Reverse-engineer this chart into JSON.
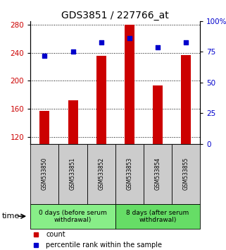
{
  "title": "GDS3851 / 227766_at",
  "samples": [
    "GSM533850",
    "GSM533851",
    "GSM533852",
    "GSM533853",
    "GSM533854",
    "GSM533855"
  ],
  "counts": [
    157,
    172,
    236,
    280,
    193,
    237
  ],
  "percentiles": [
    72,
    75,
    83,
    86,
    79,
    83
  ],
  "ylim_left": [
    110,
    285
  ],
  "ylim_right": [
    0,
    100
  ],
  "yticks_left": [
    120,
    160,
    200,
    240,
    280
  ],
  "yticks_right": [
    0,
    25,
    50,
    75,
    100
  ],
  "ytick_labels_right": [
    "0",
    "25",
    "50",
    "75",
    "100%"
  ],
  "bar_color": "#cc0000",
  "dot_color": "#0000cc",
  "bar_bottom": 110,
  "groups": [
    {
      "label": "0 days (before serum\nwithdrawal)",
      "samples_idx": [
        0,
        1,
        2
      ],
      "color": "#88ee88"
    },
    {
      "label": "8 days (after serum\nwithdrawal)",
      "samples_idx": [
        3,
        4,
        5
      ],
      "color": "#66dd66"
    }
  ],
  "sample_box_color": "#cccccc",
  "time_label": "time",
  "legend_count_label": "count",
  "legend_pct_label": "percentile rank within the sample",
  "title_fontsize": 10,
  "tick_fontsize": 7.5,
  "sample_fontsize": 5.5,
  "group_fontsize": 6.5,
  "legend_fontsize": 7,
  "bg_color": "#ffffff"
}
